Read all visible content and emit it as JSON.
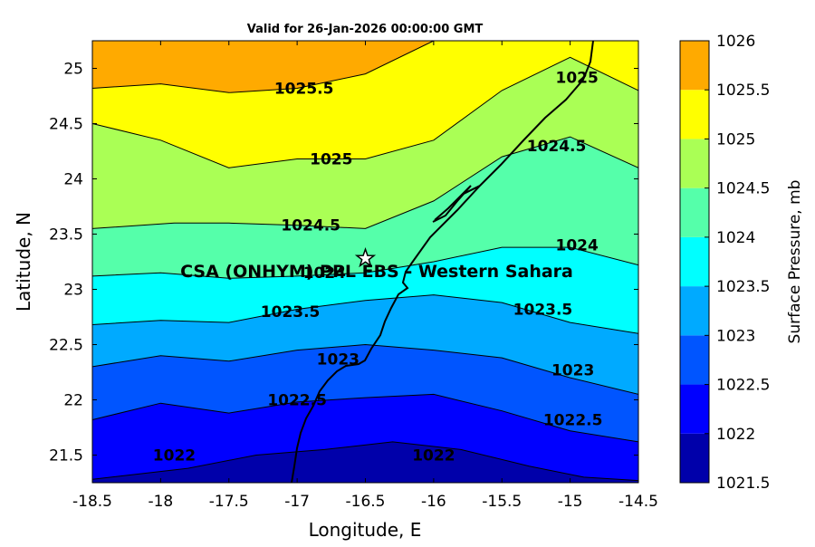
{
  "chart_data": {
    "type": "contour",
    "title": "Valid for 26-Jan-2026 00:00:00 GMT",
    "xlabel": "Longitude, E",
    "ylabel": "Latitude, N",
    "xlim": [
      -18.5,
      -14.5
    ],
    "ylim": [
      21.25,
      25.25
    ],
    "xticks": [
      "-18.5",
      "-18",
      "-17.5",
      "-17",
      "-16.5",
      "-16",
      "-15.5",
      "-15",
      "-14.5"
    ],
    "yticks": [
      "21.5",
      "22",
      "22.5",
      "23",
      "23.5",
      "24",
      "24.5",
      "25"
    ],
    "colorbar": {
      "label": "Surface Pressure, mb",
      "levels": [
        1021.5,
        1022,
        1022.5,
        1023,
        1023.5,
        1024,
        1024.5,
        1025,
        1025.5,
        1026
      ],
      "tick_labels": [
        "1021.5",
        "1022",
        "1022.5",
        "1023",
        "1023.5",
        "1024",
        "1024.5",
        "1025",
        "1025.5",
        "1026"
      ],
      "colors": [
        "#0000aa",
        "#0000ff",
        "#0055ff",
        "#00aaff",
        "#00ffff",
        "#55ffaa",
        "#aaff55",
        "#ffff00",
        "#ffaa00",
        "#ff5500"
      ]
    },
    "contours": [
      {
        "level": 1022,
        "label": "1022",
        "label_at": [
          -17.9,
          21.5
        ],
        "points": [
          [
            -18.5,
            21.28
          ],
          [
            -17.8,
            21.38
          ],
          [
            -17.3,
            21.5
          ],
          [
            -16.8,
            21.55
          ],
          [
            -16.3,
            21.62
          ],
          [
            -15.8,
            21.55
          ],
          [
            -15.3,
            21.4
          ],
          [
            -14.9,
            21.3
          ],
          [
            -14.5,
            21.27
          ]
        ]
      },
      {
        "level": 1022.5,
        "label": "1022.5",
        "label_at": [
          -17.0,
          22.0
        ],
        "points": [
          [
            -18.5,
            21.82
          ],
          [
            -18.0,
            21.97
          ],
          [
            -17.5,
            21.88
          ],
          [
            -17.0,
            21.98
          ],
          [
            -16.5,
            22.02
          ],
          [
            -16.0,
            22.05
          ],
          [
            -15.5,
            21.9
          ],
          [
            -15.0,
            21.72
          ],
          [
            -14.5,
            21.62
          ]
        ]
      },
      {
        "level": 1023,
        "label": "1023",
        "label_at": [
          -16.7,
          22.37
        ],
        "points": [
          [
            -18.5,
            22.3
          ],
          [
            -18.0,
            22.4
          ],
          [
            -17.5,
            22.35
          ],
          [
            -17.0,
            22.45
          ],
          [
            -16.5,
            22.5
          ],
          [
            -16.0,
            22.45
          ],
          [
            -15.5,
            22.38
          ],
          [
            -15.0,
            22.2
          ],
          [
            -14.5,
            22.05
          ]
        ]
      },
      {
        "level": 1023.5,
        "label": "1023.5",
        "label_at": [
          -17.05,
          22.8
        ],
        "points": [
          [
            -18.5,
            22.68
          ],
          [
            -18.0,
            22.72
          ],
          [
            -17.5,
            22.7
          ],
          [
            -17.0,
            22.82
          ],
          [
            -16.5,
            22.9
          ],
          [
            -16.0,
            22.95
          ],
          [
            -15.5,
            22.88
          ],
          [
            -15.0,
            22.7
          ],
          [
            -14.5,
            22.6
          ]
        ]
      },
      {
        "level": 1024,
        "label": "1024",
        "label_at": [
          -16.8,
          23.15
        ],
        "points": [
          [
            -18.5,
            23.12
          ],
          [
            -18.0,
            23.15
          ],
          [
            -17.5,
            23.1
          ],
          [
            -17.0,
            23.12
          ],
          [
            -16.5,
            23.15
          ],
          [
            -16.0,
            23.25
          ],
          [
            -15.5,
            23.38
          ],
          [
            -15.0,
            23.38
          ],
          [
            -14.5,
            23.22
          ]
        ]
      },
      {
        "level": 1024.5,
        "label": "1024.5",
        "label_at": [
          -16.9,
          23.58
        ],
        "points": [
          [
            -18.5,
            23.55
          ],
          [
            -17.9,
            23.6
          ],
          [
            -17.5,
            23.6
          ],
          [
            -17.0,
            23.58
          ],
          [
            -16.5,
            23.55
          ],
          [
            -16.0,
            23.8
          ],
          [
            -15.5,
            24.2
          ],
          [
            -15.0,
            24.38
          ],
          [
            -14.5,
            24.1
          ]
        ]
      },
      {
        "level": 1025,
        "label": "1025",
        "label_at": [
          -16.75,
          24.18
        ],
        "points": [
          [
            -18.5,
            24.5
          ],
          [
            -18.0,
            24.35
          ],
          [
            -17.5,
            24.1
          ],
          [
            -17.0,
            24.18
          ],
          [
            -16.5,
            24.18
          ],
          [
            -16.0,
            24.35
          ],
          [
            -15.5,
            24.8
          ],
          [
            -15.0,
            25.1
          ],
          [
            -14.5,
            24.8
          ]
        ]
      },
      {
        "level": 1025.5,
        "label": "1025.5",
        "label_at": [
          -16.95,
          24.82
        ],
        "points": [
          [
            -18.5,
            24.82
          ],
          [
            -18.0,
            24.86
          ],
          [
            -17.5,
            24.78
          ],
          [
            -17.0,
            24.82
          ],
          [
            -16.5,
            24.95
          ],
          [
            -16.0,
            25.25
          ]
        ]
      }
    ],
    "inline_labels": [
      {
        "text": "1025",
        "at": [
          -14.95,
          24.92
        ]
      },
      {
        "text": "1024.5",
        "at": [
          -15.1,
          24.3
        ]
      },
      {
        "text": "1024",
        "at": [
          -14.95,
          23.4
        ]
      },
      {
        "text": "1023.5",
        "at": [
          -15.2,
          22.82
        ]
      },
      {
        "text": "1023",
        "at": [
          -14.98,
          22.27
        ]
      },
      {
        "text": "1022.5",
        "at": [
          -14.98,
          21.82
        ]
      },
      {
        "text": "1022",
        "at": [
          -16.0,
          21.5
        ]
      }
    ],
    "station": {
      "name": "CSA (ONHYM) PPL EBS",
      "region": "Western Sahara",
      "label": "CSA (ONHYM) PPL EBS - Western Sahara",
      "lon": -16.5,
      "lat": 23.28
    }
  }
}
